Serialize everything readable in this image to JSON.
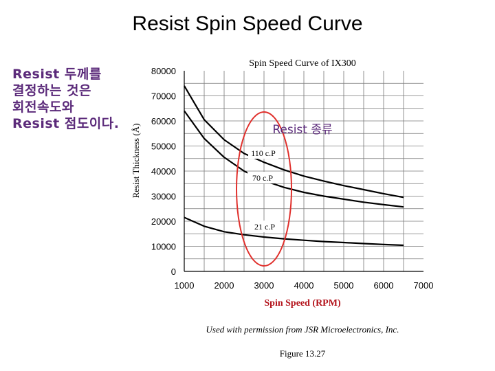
{
  "slide": {
    "title": "Resist Spin Speed Curve",
    "side_note": [
      "Resist 두께를",
      "결정하는 것은",
      "회전속도와",
      "Resist 점도이다."
    ],
    "credit": "Used with permission from JSR Microelectronics, Inc.",
    "figure_label": "Figure 13.27"
  },
  "annotation": {
    "label": "Resist 종류",
    "color": "#e0302c"
  },
  "colors": {
    "side_note": "#5b2a7a",
    "xlabel": "#b3121a",
    "curves": "#000000"
  },
  "chart_data": {
    "type": "line",
    "title": "Spin Speed Curve of IX300",
    "xlabel": "Spin Speed (RPM)",
    "ylabel": "Resist Thickness (Å)",
    "x_ticks": [
      1000,
      2000,
      3000,
      4000,
      5000,
      6000,
      7000
    ],
    "y_ticks": [
      0,
      10000,
      20000,
      30000,
      40000,
      50000,
      60000,
      70000,
      80000
    ],
    "xlim": [
      1000,
      7000
    ],
    "ylim": [
      0,
      80000
    ],
    "grid": true,
    "series": [
      {
        "name": "110 c.P",
        "x": [
          1000,
          1500,
          2000,
          2500,
          3000,
          3500,
          4000,
          4500,
          5000,
          5500,
          6000,
          6500
        ],
        "y": [
          74000,
          60500,
          52500,
          47000,
          43500,
          40500,
          38000,
          36000,
          34200,
          32600,
          31000,
          29500
        ]
      },
      {
        "name": "70 c.P",
        "x": [
          1000,
          1500,
          2000,
          2500,
          3000,
          3500,
          4000,
          4500,
          5000,
          5500,
          6000,
          6500
        ],
        "y": [
          64000,
          53000,
          45500,
          40000,
          36200,
          33500,
          31500,
          30000,
          28800,
          27600,
          26600,
          25700
        ]
      },
      {
        "name": "21 c.P",
        "x": [
          1000,
          1500,
          2000,
          2500,
          3000,
          3500,
          4000,
          4500,
          5000,
          5500,
          6000,
          6500
        ],
        "y": [
          21500,
          18000,
          15800,
          14600,
          13700,
          13000,
          12400,
          11900,
          11500,
          11100,
          10700,
          10400
        ]
      }
    ]
  }
}
